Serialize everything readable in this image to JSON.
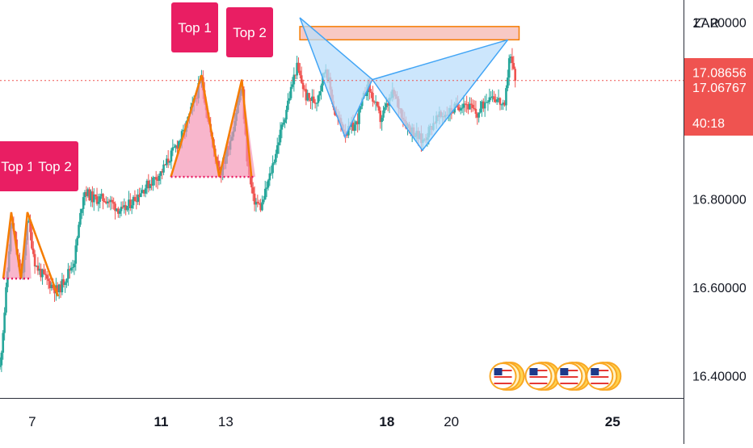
{
  "chart_data": {
    "type": "candlestick",
    "currency": "ZAR",
    "ylim": [
      16.35,
      17.25
    ],
    "y_ticks": [
      {
        "value": 17.2,
        "label": "17.20000"
      },
      {
        "value": 16.8,
        "label": "16.80000"
      },
      {
        "value": 16.6,
        "label": "16.60000"
      },
      {
        "value": 16.4,
        "label": "16.40000"
      }
    ],
    "x_ticks": [
      {
        "day": 7,
        "label": "7",
        "bold": false
      },
      {
        "day": 11,
        "label": "11",
        "bold": true
      },
      {
        "day": 13,
        "label": "13",
        "bold": false
      },
      {
        "day": 18,
        "label": "18",
        "bold": true
      },
      {
        "day": 20,
        "label": "20",
        "bold": false
      },
      {
        "day": 25,
        "label": "25",
        "bold": true
      }
    ],
    "xlim": [
      6.0,
      27.2
    ],
    "price_labels": {
      "last_price": {
        "value": 17.08656,
        "label": "17.08656"
      },
      "current_price": {
        "value": 17.06767,
        "label": "17.06767"
      },
      "countdown": "40:18"
    },
    "dotted_line_value": 17.068,
    "colors": {
      "up": "#26a69a",
      "down": "#ef5350",
      "pattern_fill": "#f48fb1",
      "pattern_line": "#f57c00",
      "harmonic_fill": "#bbdefb",
      "harmonic_line": "#42a5f5",
      "label_bg": "#e91e63",
      "price_tag": "#ef5350",
      "zone_fill": "#f8c9c4",
      "zone_border": "#f57c00"
    },
    "annotations": [
      {
        "label": "Top 1",
        "day": 6.35
      },
      {
        "label": "Top 2",
        "day": 6.85
      },
      {
        "label": "Top 1",
        "day": 12.3
      },
      {
        "label": "Top 2",
        "day": 13.55
      }
    ],
    "double_tops": [
      {
        "peaks": [
          {
            "day": 6.35,
            "price": 16.77
          },
          {
            "day": 6.85,
            "price": 16.77
          }
        ],
        "valley": {
          "day": 6.65,
          "price": 16.62
        },
        "start": {
          "day": 6.1,
          "price": 16.62
        },
        "end": {
          "day": 7.8,
          "price": 16.58
        },
        "neckline": 16.62
      },
      {
        "peaks": [
          {
            "day": 12.25,
            "price": 17.08
          },
          {
            "day": 13.5,
            "price": 17.07
          }
        ],
        "valley": {
          "day": 12.8,
          "price": 16.85
        },
        "start": {
          "day": 11.3,
          "price": 16.85
        },
        "end": {
          "day": 13.8,
          "price": 16.85
        },
        "neckline": 16.85
      }
    ],
    "harmonic_pattern": [
      {
        "day": 15.3,
        "price": 17.21
      },
      {
        "day": 16.7,
        "price": 16.94
      },
      {
        "day": 17.55,
        "price": 17.07
      },
      {
        "day": 19.1,
        "price": 16.91
      },
      {
        "day": 21.75,
        "price": 17.16
      }
    ],
    "resistance_zone": {
      "from_day": 15.3,
      "to_day": 22.1,
      "low": 17.16,
      "high": 17.19
    },
    "event_icons": [
      {
        "name": "us-flag-icon",
        "day": 21.6
      },
      {
        "name": "us-flag-icon",
        "day": 22.7
      },
      {
        "name": "us-flag-icon",
        "day": 23.65
      },
      {
        "name": "us-flag-icon",
        "day": 24.6
      }
    ],
    "price_path": [
      [
        6.0,
        16.42
      ],
      [
        6.2,
        16.6
      ],
      [
        6.35,
        16.76
      ],
      [
        6.55,
        16.66
      ],
      [
        6.7,
        16.62
      ],
      [
        6.85,
        16.76
      ],
      [
        7.1,
        16.65
      ],
      [
        7.4,
        16.62
      ],
      [
        7.8,
        16.59
      ],
      [
        8.3,
        16.66
      ],
      [
        8.6,
        16.82
      ],
      [
        8.9,
        16.8
      ],
      [
        9.3,
        16.8
      ],
      [
        9.8,
        16.77
      ],
      [
        10.4,
        16.82
      ],
      [
        11.0,
        16.86
      ],
      [
        11.7,
        16.95
      ],
      [
        12.25,
        17.07
      ],
      [
        12.6,
        16.92
      ],
      [
        12.85,
        16.86
      ],
      [
        13.2,
        16.95
      ],
      [
        13.5,
        17.06
      ],
      [
        13.65,
        16.9
      ],
      [
        13.85,
        16.8
      ],
      [
        14.1,
        16.78
      ],
      [
        14.4,
        16.86
      ],
      [
        14.8,
        16.98
      ],
      [
        15.2,
        17.1
      ],
      [
        15.5,
        17.03
      ],
      [
        15.8,
        17.02
      ],
      [
        16.1,
        17.1
      ],
      [
        16.4,
        16.99
      ],
      [
        16.75,
        16.95
      ],
      [
        17.05,
        16.97
      ],
      [
        17.4,
        17.06
      ],
      [
        17.8,
        16.98
      ],
      [
        18.2,
        17.04
      ],
      [
        18.6,
        16.97
      ],
      [
        19.1,
        16.93
      ],
      [
        19.5,
        16.98
      ],
      [
        20.0,
        17.0
      ],
      [
        20.4,
        17.02
      ],
      [
        20.8,
        16.99
      ],
      [
        21.2,
        17.04
      ],
      [
        21.5,
        17.02
      ],
      [
        21.65,
        17.0
      ],
      [
        21.8,
        17.13
      ],
      [
        22.0,
        17.07
      ]
    ]
  }
}
